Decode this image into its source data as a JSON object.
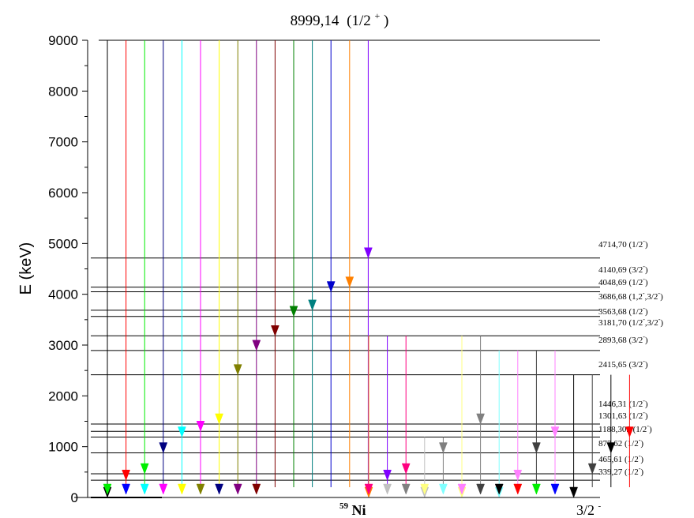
{
  "title": {
    "energy": "8999,14",
    "spin": "(1/2",
    "parity": "+",
    "close": ")"
  },
  "y_axis": {
    "label": "E (keV)",
    "min": 0,
    "max": 9000,
    "ticks": [
      0,
      1000,
      2000,
      3000,
      4000,
      5000,
      6000,
      7000,
      8000,
      9000
    ]
  },
  "nucleus": {
    "mass": "59",
    "symbol": "Ni"
  },
  "ground_state": {
    "spin": "3/2",
    "parity": "-"
  },
  "capture_level": 8999.14,
  "levels": [
    {
      "energy": 4714.7,
      "text": "4714,70 (1/2",
      "sup": "-",
      "tail": ")"
    },
    {
      "energy": 4140.69,
      "text": "4140,69 (3/2",
      "sup": "-",
      "tail": ")"
    },
    {
      "energy": 4048.69,
      "text": "4048,69 (1/2",
      "sup": "-",
      "tail": ")"
    },
    {
      "energy": 3686.68,
      "text": "3686,68 (1,2",
      "sup": "-",
      "tail": ",3/2",
      "sup2": "-",
      "tail2": ")"
    },
    {
      "energy": 3563.68,
      "text": "3563,68 (1/2",
      "sup": "-",
      "tail": ")"
    },
    {
      "energy": 3181.7,
      "text": "3181,70 (1/2",
      "sup": "-",
      "tail": ",3/2",
      "sup2": "-",
      "tail2": ")"
    },
    {
      "energy": 2893.68,
      "text": "2893,68 (3/2",
      "sup": "-",
      "tail": ")"
    },
    {
      "energy": 2415.65,
      "text": "2415,65 (3/2",
      "sup": "-",
      "tail": ")"
    },
    {
      "energy": 1446.31,
      "text": "1446,31 (1/2",
      "sup": "-",
      "tail": ")"
    },
    {
      "energy": 1301.63,
      "text": "1301,63 (1/2",
      "sup": "-",
      "tail": ")"
    },
    {
      "energy": 1188.309,
      "text": "1188,309 (1/2",
      "sup": "-",
      "tail": ")"
    },
    {
      "energy": 877.62,
      "text": "877,62 (1/2",
      "sup": "-",
      "tail": ")"
    },
    {
      "energy": 465.61,
      "text": "465,61 (1/2",
      "sup": "-",
      "tail": ")"
    },
    {
      "energy": 339.27,
      "text": "339,27 (1/2",
      "sup": "-",
      "tail": ")"
    }
  ],
  "primary_transitions": [
    {
      "to": 0,
      "color": "#000000"
    },
    {
      "to": 339.27,
      "color": "#ff0000"
    },
    {
      "to": 465.61,
      "color": "#00ee00"
    },
    {
      "to": 877.62,
      "color": "#000080"
    },
    {
      "to": 1188.309,
      "color": "#00ffff"
    },
    {
      "to": 1301.63,
      "color": "#ff00ff"
    },
    {
      "to": 1446.31,
      "color": "#ffff00"
    },
    {
      "to": 2415.65,
      "color": "#808000"
    },
    {
      "to": 2893.68,
      "color": "#800080"
    },
    {
      "to": 3181.7,
      "color": "#800000"
    },
    {
      "to": 3563.68,
      "color": "#008000"
    },
    {
      "to": 3686.68,
      "color": "#008080"
    },
    {
      "to": 4048.69,
      "color": "#0000cc"
    },
    {
      "to": 4140.69,
      "color": "#ff8000"
    },
    {
      "to": 4714.7,
      "color": "#8000ff"
    }
  ],
  "secondary_transitions": [
    {
      "from": 3181.7,
      "to": 0,
      "color": "#ff8000"
    },
    {
      "from": 3181.7,
      "to": 339.27,
      "color": "#8000ff"
    },
    {
      "from": 3181.7,
      "to": 465.61,
      "color": "#ff0080"
    },
    {
      "from": 1188.309,
      "to": 0,
      "color": "#c0c0c0"
    },
    {
      "from": 1188.309,
      "to": 877.62,
      "color": "#808080"
    },
    {
      "from": 3181.7,
      "to": 0,
      "color": "#ffff80"
    },
    {
      "from": 3181.7,
      "to": 1446.31,
      "color": "#808080"
    },
    {
      "from": 2893.68,
      "to": 0,
      "color": "#80ffff"
    },
    {
      "from": 2893.68,
      "to": 339.27,
      "color": "#ff80ff"
    },
    {
      "from": 2893.68,
      "to": 877.62,
      "color": "#404040"
    },
    {
      "from": 2893.68,
      "to": 1188.309,
      "color": "#ff80ff"
    },
    {
      "from": 2415.65,
      "to": 0,
      "color": "#000000"
    },
    {
      "from": 2415.65,
      "to": 465.61,
      "color": "#404040"
    },
    {
      "from": 2415.65,
      "to": 877.62,
      "color": "#000000"
    },
    {
      "from": 2415.65,
      "to": 1188.309,
      "color": "#ff0000"
    }
  ],
  "ground_arrows": [
    {
      "color": "#00ee00"
    },
    {
      "color": "#0000ff"
    },
    {
      "color": "#00ffff"
    },
    {
      "color": "#ff00ff"
    },
    {
      "color": "#ffff00"
    },
    {
      "color": "#808000"
    },
    {
      "color": "#000080"
    },
    {
      "color": "#800080"
    },
    {
      "color": "#800000"
    },
    {
      "color": "#ff0080"
    },
    {
      "color": "#c0c0c0"
    },
    {
      "color": "#808080"
    },
    {
      "color": "#ffff80"
    },
    {
      "color": "#80ffff"
    },
    {
      "color": "#ff80ff"
    },
    {
      "color": "#404040"
    },
    {
      "color": "#000000"
    },
    {
      "color": "#ff0000"
    },
    {
      "color": "#00ee00"
    },
    {
      "color": "#0000ff"
    }
  ]
}
